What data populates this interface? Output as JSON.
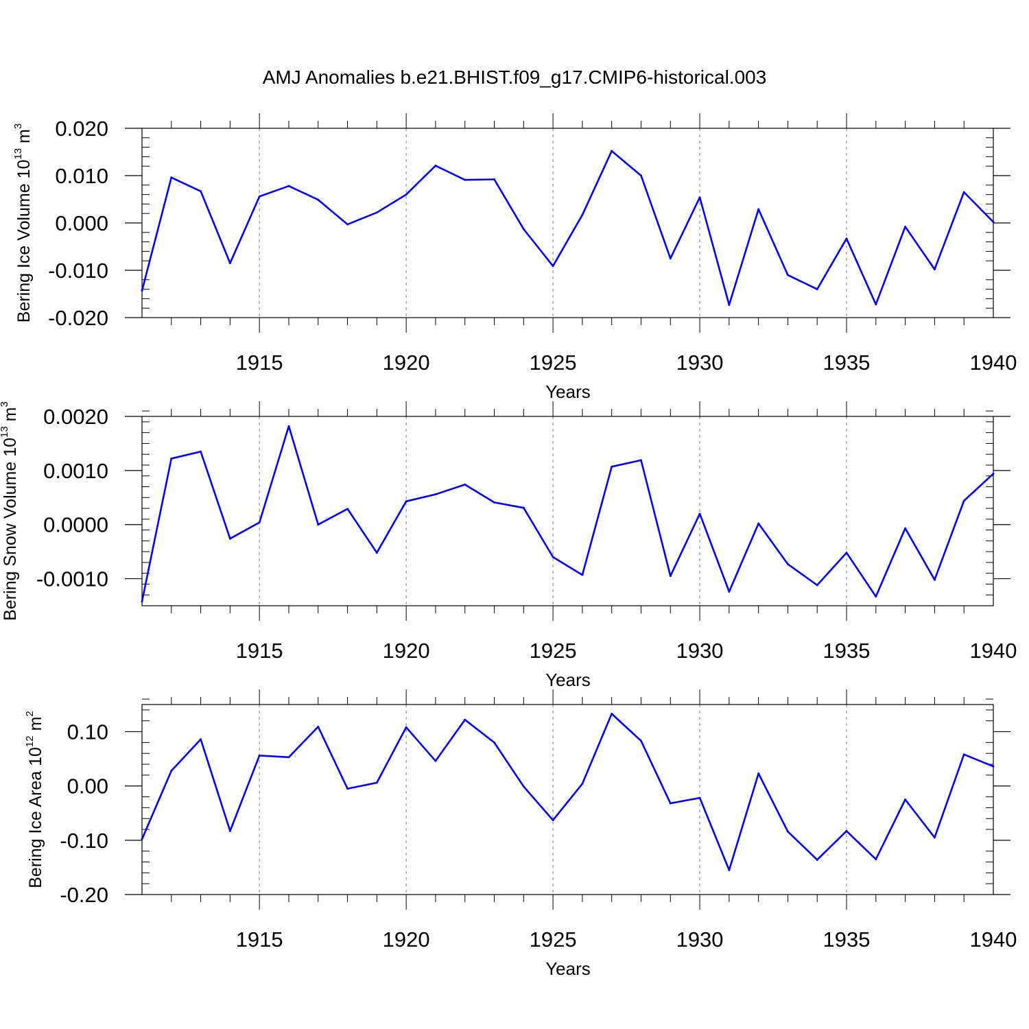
{
  "title": "AMJ Anomalies b.e21.BHIST.f09_g17.CMIP6-historical.003",
  "line_color": "#0000ff",
  "chart_data": [
    {
      "type": "line",
      "ylabel": "Bering Ice Volume 10",
      "ylabel_exp": "13",
      "ylabel_unit": " m",
      "ylabel_unit_exp": "3",
      "xlabel": "Years",
      "xlim": [
        1911,
        1940
      ],
      "ylim": [
        -0.02,
        0.02
      ],
      "y_ticks": [
        -0.02,
        -0.01,
        0.0,
        0.01,
        0.02
      ],
      "y_tick_labels": [
        "-0.020",
        "-0.010",
        "0.000",
        "0.010",
        "0.020"
      ],
      "x_ticks": [
        1915,
        1920,
        1925,
        1930,
        1935,
        1940
      ],
      "x_tick_labels": [
        "1915",
        "1920",
        "1925",
        "1930",
        "1935",
        "1940"
      ],
      "x": [
        1911,
        1912,
        1913,
        1914,
        1915,
        1916,
        1917,
        1918,
        1919,
        1920,
        1921,
        1922,
        1923,
        1924,
        1925,
        1926,
        1927,
        1928,
        1929,
        1930,
        1931,
        1932,
        1933,
        1934,
        1935,
        1936,
        1937,
        1938,
        1939,
        1940
      ],
      "y": [
        -0.0143,
        0.0096,
        0.0067,
        -0.0085,
        0.0056,
        0.0078,
        0.0049,
        -0.0003,
        0.0022,
        0.006,
        0.0121,
        0.0091,
        0.0092,
        -0.0013,
        -0.0091,
        0.0017,
        0.0152,
        0.01,
        -0.0075,
        0.0054,
        -0.0173,
        0.0029,
        -0.011,
        -0.014,
        -0.0033,
        -0.0172,
        -0.0008,
        -0.0098,
        0.0065,
        0.0002
      ]
    },
    {
      "type": "line",
      "ylabel": "Bering Snow Volume 10",
      "ylabel_exp": "13",
      "ylabel_unit": " m",
      "ylabel_unit_exp": "3",
      "xlabel": "Years",
      "xlim": [
        1911,
        1940
      ],
      "ylim": [
        -0.0015,
        0.002
      ],
      "y_ticks": [
        -0.001,
        0.0,
        0.001,
        0.002
      ],
      "y_tick_labels": [
        "-0.0010",
        "0.0000",
        "0.0010",
        "0.0020"
      ],
      "x_ticks": [
        1915,
        1920,
        1925,
        1930,
        1935,
        1940
      ],
      "x_tick_labels": [
        "1915",
        "1920",
        "1925",
        "1930",
        "1935",
        "1940"
      ],
      "x": [
        1911,
        1912,
        1913,
        1914,
        1915,
        1916,
        1917,
        1918,
        1919,
        1920,
        1921,
        1922,
        1923,
        1924,
        1925,
        1926,
        1927,
        1928,
        1929,
        1930,
        1931,
        1932,
        1933,
        1934,
        1935,
        1936,
        1937,
        1938,
        1939,
        1940
      ],
      "y": [
        -0.00142,
        0.00122,
        0.00135,
        -0.00026,
        4e-05,
        0.00182,
        0.0,
        0.00029,
        -0.00052,
        0.00043,
        0.00056,
        0.00074,
        0.00041,
        0.00031,
        -0.0006,
        -0.00093,
        0.00107,
        0.00119,
        -0.00095,
        0.0002,
        -0.00124,
        2e-05,
        -0.00073,
        -0.00112,
        -0.00052,
        -0.00133,
        -7e-05,
        -0.00102,
        0.00044,
        0.00094
      ]
    },
    {
      "type": "line",
      "ylabel": "Bering Ice Area 10",
      "ylabel_exp": "12",
      "ylabel_unit": " m",
      "ylabel_unit_exp": "2",
      "xlabel": "Years",
      "xlim": [
        1911,
        1940
      ],
      "ylim": [
        -0.2,
        0.15
      ],
      "y_ticks": [
        -0.2,
        -0.1,
        0.0,
        0.1
      ],
      "y_tick_labels": [
        "-0.20",
        "-0.10",
        "0.00",
        "0.10"
      ],
      "x_ticks": [
        1915,
        1920,
        1925,
        1930,
        1935,
        1940
      ],
      "x_tick_labels": [
        "1915",
        "1920",
        "1925",
        "1930",
        "1935",
        "1940"
      ],
      "x": [
        1911,
        1912,
        1913,
        1914,
        1915,
        1916,
        1917,
        1918,
        1919,
        1920,
        1921,
        1922,
        1923,
        1924,
        1925,
        1926,
        1927,
        1928,
        1929,
        1930,
        1931,
        1932,
        1933,
        1934,
        1935,
        1936,
        1937,
        1938,
        1939,
        1940
      ],
      "y": [
        -0.098,
        0.028,
        0.086,
        -0.083,
        0.056,
        0.053,
        0.109,
        -0.005,
        0.006,
        0.108,
        0.046,
        0.122,
        0.08,
        -0.001,
        -0.063,
        0.004,
        0.133,
        0.083,
        -0.032,
        -0.022,
        -0.155,
        0.023,
        -0.084,
        -0.136,
        -0.083,
        -0.135,
        -0.025,
        -0.095,
        0.058,
        0.036
      ]
    }
  ]
}
